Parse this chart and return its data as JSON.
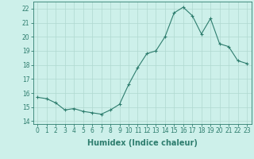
{
  "x": [
    0,
    1,
    2,
    3,
    4,
    5,
    6,
    7,
    8,
    9,
    10,
    11,
    12,
    13,
    14,
    15,
    16,
    17,
    18,
    19,
    20,
    21,
    22,
    23
  ],
  "y": [
    15.7,
    15.6,
    15.3,
    14.8,
    14.9,
    14.7,
    14.6,
    14.5,
    14.8,
    15.2,
    16.6,
    17.8,
    18.8,
    19.0,
    20.0,
    21.7,
    22.1,
    21.5,
    20.2,
    21.3,
    19.5,
    19.3,
    18.3,
    18.1
  ],
  "line_color": "#2e7d6e",
  "marker": "+",
  "marker_size": 3.0,
  "bg_color": "#cdf0ea",
  "grid_color": "#b0d8d0",
  "xlabel": "Humidex (Indice chaleur)",
  "ylabel": "",
  "xlim": [
    -0.5,
    23.5
  ],
  "ylim": [
    13.8,
    22.5
  ],
  "yticks": [
    14,
    15,
    16,
    17,
    18,
    19,
    20,
    21,
    22
  ],
  "xticks": [
    0,
    1,
    2,
    3,
    4,
    5,
    6,
    7,
    8,
    9,
    10,
    11,
    12,
    13,
    14,
    15,
    16,
    17,
    18,
    19,
    20,
    21,
    22,
    23
  ],
  "tick_color": "#2e7d6e",
  "spine_color": "#2e7d6e",
  "tick_fontsize": 5.5,
  "xlabel_fontsize": 7.0,
  "linewidth": 0.8
}
